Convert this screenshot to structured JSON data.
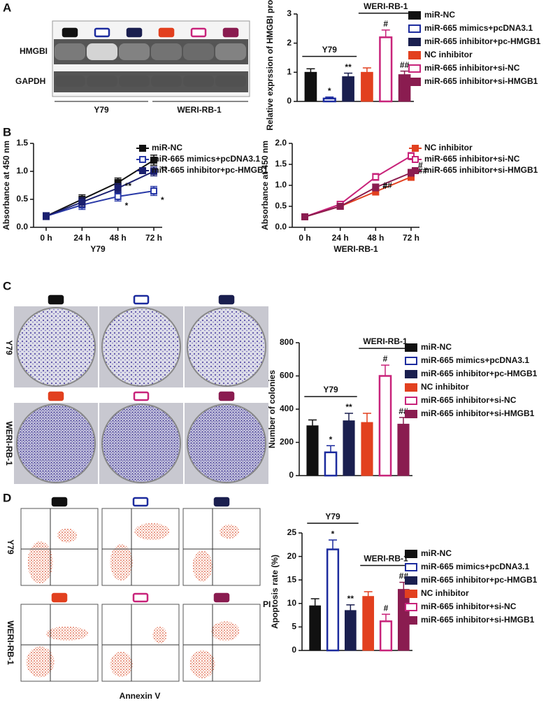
{
  "labels": {
    "panels": [
      "A",
      "B",
      "C",
      "D"
    ],
    "blot_rows": [
      "HMGBI",
      "GAPDH"
    ],
    "blot_groups": [
      "Y79",
      "WERI-RB-1"
    ],
    "colony_rows": [
      "Y79",
      "WERI-RB-1"
    ],
    "flow_rows": [
      "Y79",
      "WERI-RB-1"
    ],
    "flow_x": "Annexin V",
    "flow_y": "PI"
  },
  "chart_data": [
    {
      "type": "bar",
      "ylabel": "Relative exprssion of HMGBI protein",
      "ylim": [
        0,
        3
      ],
      "yticks": [
        0,
        1,
        2,
        3
      ],
      "group_labels": [
        "Y79",
        "WERI-RB-1"
      ],
      "series": [
        {
          "name": "miR-NC",
          "color": "#111111",
          "fill": "#111111",
          "values": [
            1.0
          ],
          "errors": [
            0.12
          ]
        },
        {
          "name": "miR-665 mimics+pcDNA3.1",
          "color": "#1c2b9e",
          "fill": "#ffffff",
          "values": [
            0.1
          ],
          "errors": [
            0.05
          ],
          "sig": "*"
        },
        {
          "name": "miR-665 inhibitor+pc-HMGB1",
          "color": "#1a1f4f",
          "fill": "#1a1f4f",
          "values": [
            0.85
          ],
          "errors": [
            0.12
          ],
          "sig": "**"
        },
        {
          "name": "NC inhibitor",
          "color": "#e2401f",
          "fill": "#e2401f",
          "values": [
            1.0
          ],
          "errors": [
            0.15
          ]
        },
        {
          "name": "miR-665 inhibitor+si-NC",
          "color": "#c8237a",
          "fill": "#ffffff",
          "values": [
            2.2
          ],
          "errors": [
            0.25
          ],
          "sig": "#"
        },
        {
          "name": "miR-665 inhibitor+si-HMGB1",
          "color": "#8a1c50",
          "fill": "#8a1c50",
          "values": [
            0.92
          ],
          "errors": [
            0.12
          ],
          "sig": "##"
        }
      ]
    },
    {
      "type": "line",
      "ylabel": "Absorbance at 450 nm",
      "xlabel": "Y79",
      "categories": [
        "0 h",
        "24 h",
        "48 h",
        "72 h"
      ],
      "ylim": [
        0,
        1.5
      ],
      "yticks": [
        {
          "value": 0,
          "label": "0.0"
        },
        0.5,
        {
          "value": 1,
          "label": "1.0"
        },
        1.5
      ],
      "series": [
        {
          "name": "miR-NC",
          "color": "#111111",
          "values": [
            0.2,
            0.5,
            0.8,
            1.2
          ],
          "errors": [
            0.06,
            0.08,
            0.08,
            0.09
          ]
        },
        {
          "name": "miR-665 mimics+pcDNA3.1",
          "color": "#2a3aa8",
          "values": [
            0.2,
            0.4,
            0.55,
            0.65
          ],
          "errors": [
            0.06,
            0.08,
            0.08,
            0.08
          ],
          "point_labels": [
            null,
            null,
            "*",
            "*"
          ]
        },
        {
          "name": "miR-665 inhibitor+pc-HMGB1",
          "color": "#1a1f6f",
          "values": [
            0.2,
            0.45,
            0.7,
            1.0
          ],
          "errors": [
            0.06,
            0.08,
            0.08,
            0.08
          ],
          "point_labels": [
            null,
            null,
            "**",
            "**"
          ]
        }
      ]
    },
    {
      "type": "line",
      "ylabel": "Absorbance at 450 nm",
      "xlabel": "WERI-RB-1",
      "categories": [
        "0 h",
        "24 h",
        "48 h",
        "72 h"
      ],
      "ylim": [
        0,
        2
      ],
      "yticks": [
        {
          "value": 0,
          "label": "0.0"
        },
        0.5,
        {
          "value": 1,
          "label": "1.0"
        },
        1.5,
        {
          "value": 2,
          "label": "2.0"
        }
      ],
      "series": [
        {
          "name": "NC inhibitor",
          "color": "#e2401f",
          "values": [
            0.25,
            0.5,
            0.85,
            1.2
          ],
          "errors": [
            0.05,
            0.06,
            0.08,
            0.08
          ]
        },
        {
          "name": "miR-665 inhibitor+si-NC",
          "color": "#c8237a",
          "values": [
            0.25,
            0.55,
            1.2,
            1.7
          ],
          "errors": [
            0.05,
            0.06,
            0.08,
            0.08
          ],
          "point_labels": [
            null,
            null,
            "#",
            "#"
          ]
        },
        {
          "name": "miR-665 inhibitor+si-HMGB1",
          "color": "#8a1c50",
          "values": [
            0.25,
            0.5,
            0.95,
            1.3
          ],
          "errors": [
            0.05,
            0.06,
            0.08,
            0.08
          ],
          "point_labels": [
            null,
            null,
            "##",
            "##"
          ]
        }
      ]
    },
    {
      "type": "bar",
      "ylabel": "Number of colonies",
      "ylim": [
        0,
        800
      ],
      "yticks": [
        0,
        200,
        400,
        600,
        800
      ],
      "group_labels": [
        "Y79",
        "WERI-RB-1"
      ],
      "series": [
        {
          "name": "miR-NC",
          "color": "#111111",
          "fill": "#111111",
          "values": [
            300
          ],
          "errors": [
            35
          ]
        },
        {
          "name": "miR-665 mimics+pcDNA3.1",
          "color": "#1c2b9e",
          "fill": "#ffffff",
          "values": [
            140
          ],
          "errors": [
            40
          ],
          "sig": "*"
        },
        {
          "name": "miR-665 inhibitor+pc-HMGB1",
          "color": "#1a1f4f",
          "fill": "#1a1f4f",
          "values": [
            330
          ],
          "errors": [
            45
          ],
          "sig": "**"
        },
        {
          "name": "NC inhibitor",
          "color": "#e2401f",
          "fill": "#e2401f",
          "values": [
            320
          ],
          "errors": [
            55
          ]
        },
        {
          "name": "miR-665 inhibitor+si-NC",
          "color": "#c8237a",
          "fill": "#ffffff",
          "values": [
            600
          ],
          "errors": [
            65
          ],
          "sig": "#"
        },
        {
          "name": "miR-665 inhibitor+si-HMGB1",
          "color": "#8a1c50",
          "fill": "#8a1c50",
          "values": [
            310
          ],
          "errors": [
            40
          ],
          "sig": "##"
        }
      ]
    },
    {
      "type": "bar",
      "ylabel": "Apoptosis rate (%)",
      "ylim": [
        0,
        25
      ],
      "yticks": [
        0,
        5,
        10,
        15,
        20,
        25
      ],
      "group_labels": [
        "Y79",
        "WERI-RB-1"
      ],
      "series": [
        {
          "name": "miR-NC",
          "color": "#111111",
          "fill": "#111111",
          "values": [
            9.5
          ],
          "errors": [
            1.5
          ]
        },
        {
          "name": "miR-665 mimics+pcDNA3.1",
          "color": "#1c2b9e",
          "fill": "#ffffff",
          "values": [
            21.5
          ],
          "errors": [
            2.0
          ],
          "sig": "*"
        },
        {
          "name": "miR-665 inhibitor+pc-HMGB1",
          "color": "#1a1f4f",
          "fill": "#1a1f4f",
          "values": [
            8.5
          ],
          "errors": [
            1.2
          ],
          "sig": "**"
        },
        {
          "name": "NC inhibitor",
          "color": "#e2401f",
          "fill": "#e2401f",
          "values": [
            11.5
          ],
          "errors": [
            1.0
          ]
        },
        {
          "name": "miR-665 inhibitor+si-NC",
          "color": "#c8237a",
          "fill": "#ffffff",
          "values": [
            6.2
          ],
          "errors": [
            1.5
          ],
          "sig": "#"
        },
        {
          "name": "miR-665 inhibitor+si-HMGB1",
          "color": "#8a1c50",
          "fill": "#8a1c50",
          "values": [
            13
          ],
          "errors": [
            1.5
          ],
          "sig": "##"
        }
      ]
    }
  ]
}
